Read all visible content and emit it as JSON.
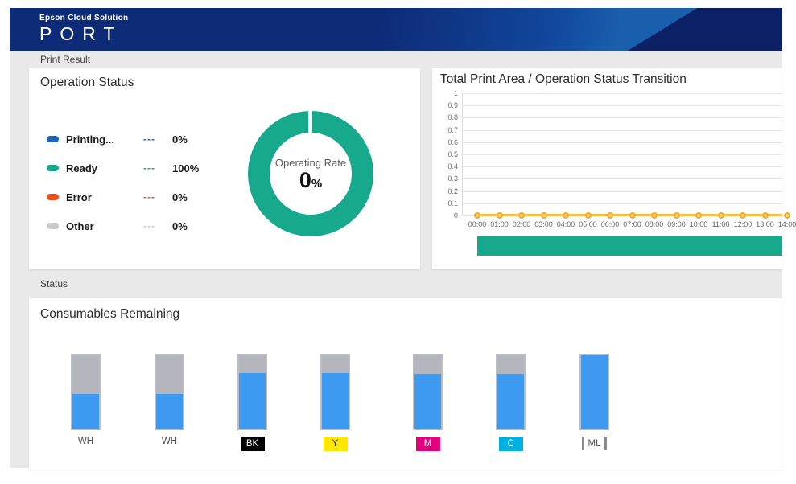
{
  "header": {
    "brand_top": "Epson Cloud Solution",
    "brand_main": "PORT"
  },
  "sections": {
    "print_result": "Print Result",
    "status": "Status"
  },
  "theme": {
    "header_blue": "#0e2b78",
    "header_blue_light": "#1a5fae",
    "header_blue_dark": "#0c2066",
    "content_bg": "#e9e9e9",
    "card_bg": "#ffffff"
  },
  "chart_data": [
    {
      "type": "pie",
      "subtype": "donut",
      "title": "Operation Status",
      "categories": [
        "Printing...",
        "Ready",
        "Error",
        "Other"
      ],
      "values": [
        0,
        100,
        0,
        0
      ],
      "value_labels": [
        "0%",
        "100%",
        "0%",
        "0%"
      ],
      "colors": [
        "#1f63b5",
        "#17a98b",
        "#e8501e",
        "#c9c9c9"
      ],
      "legend_position": "left",
      "center_label": "Operating Rate",
      "center_value": "0",
      "center_unit": "%"
    },
    {
      "type": "line",
      "title": "Total Print Area / Operation Status Transition",
      "x": [
        "00:00",
        "01:00",
        "02:00",
        "03:00",
        "04:00",
        "05:00",
        "06:00",
        "07:00",
        "08:00",
        "09:00",
        "10:00",
        "11:00",
        "12:00",
        "13:00",
        "14:00"
      ],
      "series": [
        {
          "name": "Total Print Area",
          "values": [
            0,
            0,
            0,
            0,
            0,
            0,
            0,
            0,
            0,
            0,
            0,
            0,
            0,
            0,
            0
          ],
          "color": "#f5bd41",
          "marker_fill": "#f9d173",
          "marker_stroke": "#efae2f"
        }
      ],
      "ylim": [
        0,
        1
      ],
      "yticks": [
        "1",
        "0.9",
        "0.8",
        "0.7",
        "0.6",
        "0.5",
        "0.4",
        "0.3",
        "0.2",
        "0.1",
        "0"
      ],
      "grid": true,
      "status_strip": {
        "label": "Ready",
        "color": "#17a98b"
      }
    }
  ],
  "consumables": {
    "title": "Consumables Remaining",
    "fill_color": "#3d9af0",
    "tank_bg": "#b5b5bd",
    "tank_border": "#bdbdc5",
    "tanks": [
      {
        "label": "WH",
        "style": "plain",
        "fill_pct": 47
      },
      {
        "label": "WH",
        "style": "plain",
        "fill_pct": 47
      },
      {
        "label": "BK",
        "style": "badge",
        "badge_bg": "#000000",
        "badge_fg": "#ffffff",
        "fill_pct": 76
      },
      {
        "label": "Y",
        "style": "badge",
        "badge_bg": "#ffe800",
        "badge_fg": "#333333",
        "fill_pct": 76
      },
      {
        "label": "M",
        "style": "badge",
        "badge_bg": "#e3007e",
        "badge_fg": "#ffffff",
        "fill_pct": 75
      },
      {
        "label": "C",
        "style": "badge",
        "badge_bg": "#00b1e0",
        "badge_fg": "#ffffff",
        "fill_pct": 75
      },
      {
        "label": "ML",
        "style": "bracket",
        "fill_pct": 100
      }
    ]
  }
}
